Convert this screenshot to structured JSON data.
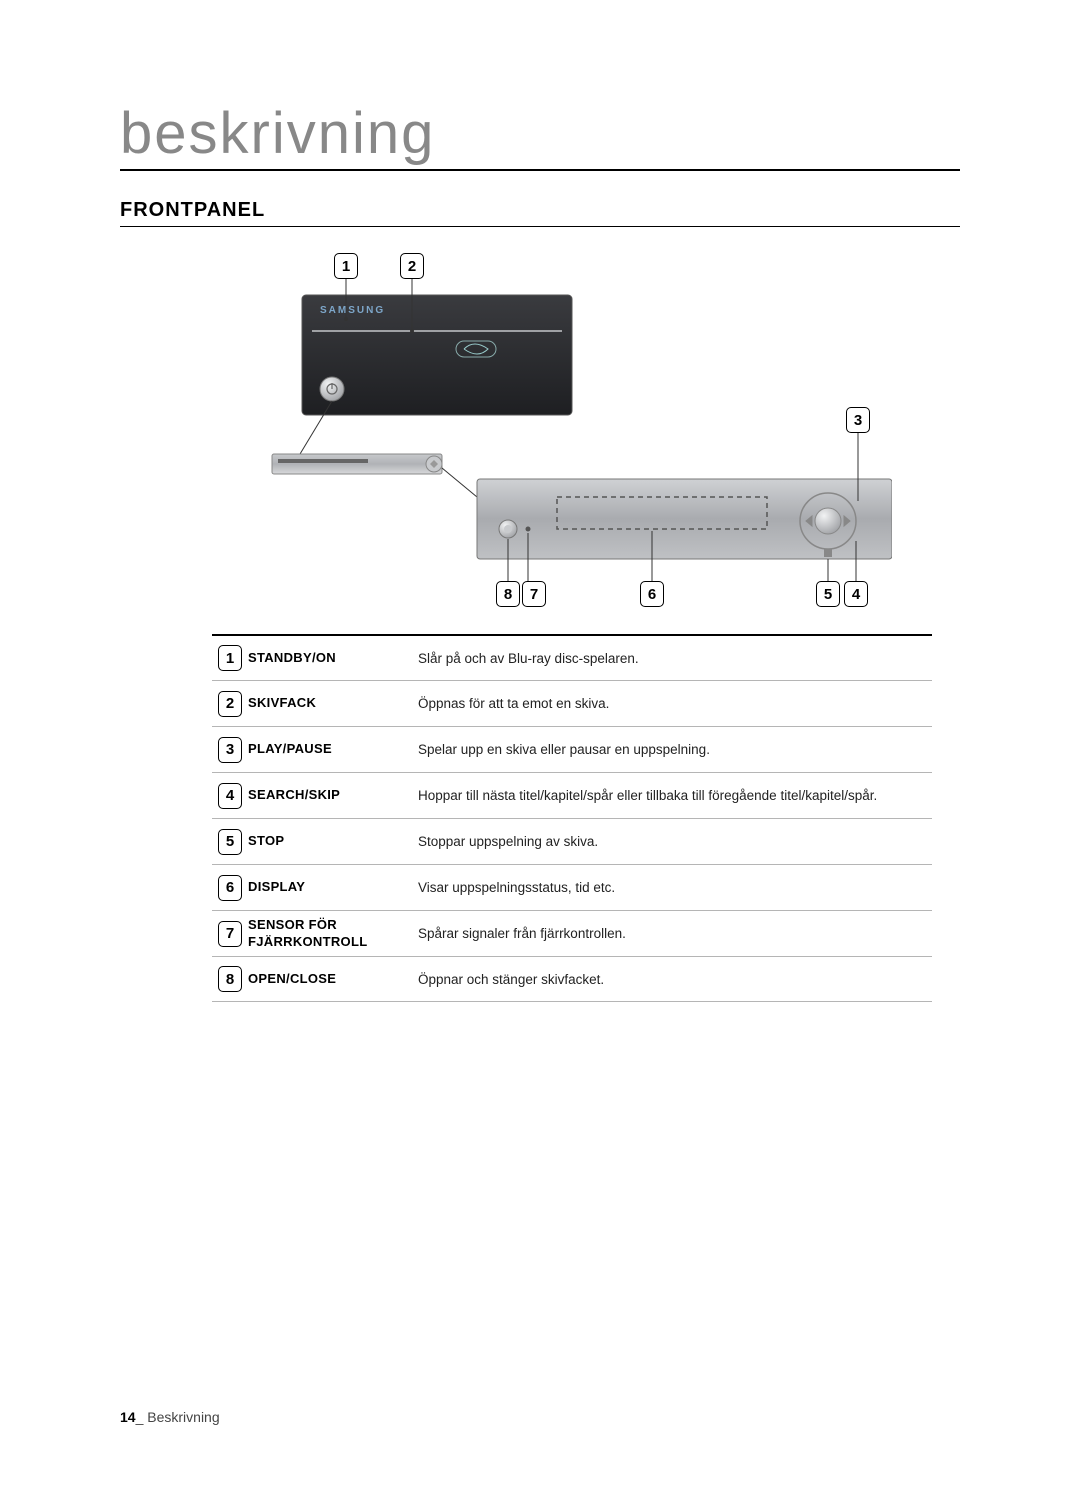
{
  "page": {
    "title": "beskrivning",
    "section": "FRONTPANEL",
    "footer_page": "14",
    "footer_sep": "_",
    "footer_text": " Beskrivning"
  },
  "diagram": {
    "top_callouts": [
      "1",
      "2"
    ],
    "right_callout": "3",
    "bottom_callouts_left_group": [
      "8",
      "7"
    ],
    "bottom_callout_center": "6",
    "bottom_callouts_right_group": [
      "5",
      "4"
    ],
    "brand": "SAMSUNG",
    "colors": {
      "device_light": "#d6d7d9",
      "device_mid": "#b9bbbe",
      "device_dark": "#8f9194",
      "device_top_dark": "#2c2d30",
      "line": "#333333",
      "dash": "#555555"
    }
  },
  "table": {
    "rows": [
      {
        "n": "1",
        "label": "STANDBY/ON",
        "desc": "Slår på och av Blu-ray disc-spelaren."
      },
      {
        "n": "2",
        "label": "SKIVFACK",
        "desc": "Öppnas för att ta emot en skiva."
      },
      {
        "n": "3",
        "label": "PLAY/PAUSE",
        "desc": "Spelar upp en skiva eller pausar en uppspelning."
      },
      {
        "n": "4",
        "label": "SEARCH/SKIP",
        "desc": "Hoppar till nästa titel/kapitel/spår eller tillbaka till föregående titel/kapitel/spår."
      },
      {
        "n": "5",
        "label": "STOP",
        "desc": "Stoppar uppspelning av skiva."
      },
      {
        "n": "6",
        "label": "DISPLAY",
        "desc": "Visar uppspelningsstatus, tid etc."
      },
      {
        "n": "7",
        "label": "SENSOR FÖR FJÄRRKONTROLL",
        "desc": "Spårar signaler från fjärrkontrollen."
      },
      {
        "n": "8",
        "label": "OPEN/CLOSE",
        "desc": "Öppnar och stänger skivfacket."
      }
    ]
  }
}
